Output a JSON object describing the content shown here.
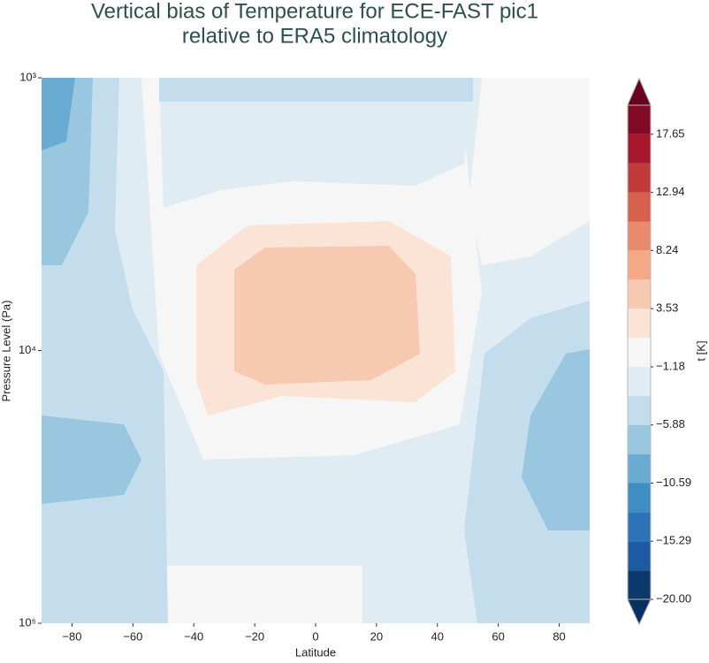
{
  "chart_data": {
    "type": "contourf",
    "title": [
      "Vertical bias of Temperature for ECE-FAST pic1",
      "relative to ERA5 climatology"
    ],
    "x_label": "Latitude",
    "y_label": "Pressure Level (Pa)",
    "colorbar_label": "t [K]",
    "xlim": [
      -90,
      90
    ],
    "xticks": [
      {
        "value": -80,
        "label": "−80"
      },
      {
        "value": -60,
        "label": "−60"
      },
      {
        "value": -40,
        "label": "−40"
      },
      {
        "value": -20,
        "label": "−20"
      },
      0,
      20,
      40,
      60,
      80
    ],
    "ylim": [
      100000,
      1000
    ],
    "y_scale": "log",
    "yticks": [
      {
        "value": 1000,
        "label": "10³"
      },
      {
        "value": 10000,
        "label": "10⁴"
      },
      {
        "value": 100000,
        "label": "10⁵"
      }
    ],
    "levels": [
      -20,
      -17.65,
      -15.29,
      -12.94,
      -10.59,
      -8.24,
      -5.88,
      -3.53,
      -1.18,
      1.18,
      3.53,
      5.88,
      8.24,
      10.59,
      12.94,
      15.29,
      17.65,
      20
    ],
    "colors": [
      "#0d3a6c",
      "#1c5ba1",
      "#2c74b5",
      "#3f8ec3",
      "#6aabd3",
      "#99c7e0",
      "#c3ddec",
      "#e0ecf4",
      "#f6f6f6",
      "#fbe4d6",
      "#f8c9b1",
      "#f4a886",
      "#e88a6c",
      "#d6604d",
      "#c13b3b",
      "#a6172c",
      "#7f0b24"
    ],
    "extend_colors": [
      "#053061",
      "#67001f"
    ],
    "colorbar_ticks": [
      17.65,
      12.94,
      8.24,
      3.53,
      {
        "value": -1.18,
        "label": "−1.18"
      },
      {
        "value": -5.88,
        "label": "−5.88"
      },
      {
        "value": -10.59,
        "label": "−10.59"
      },
      {
        "value": -15.29,
        "label": "−15.29"
      },
      {
        "value": -20,
        "label": "−20.00"
      }
    ]
  }
}
